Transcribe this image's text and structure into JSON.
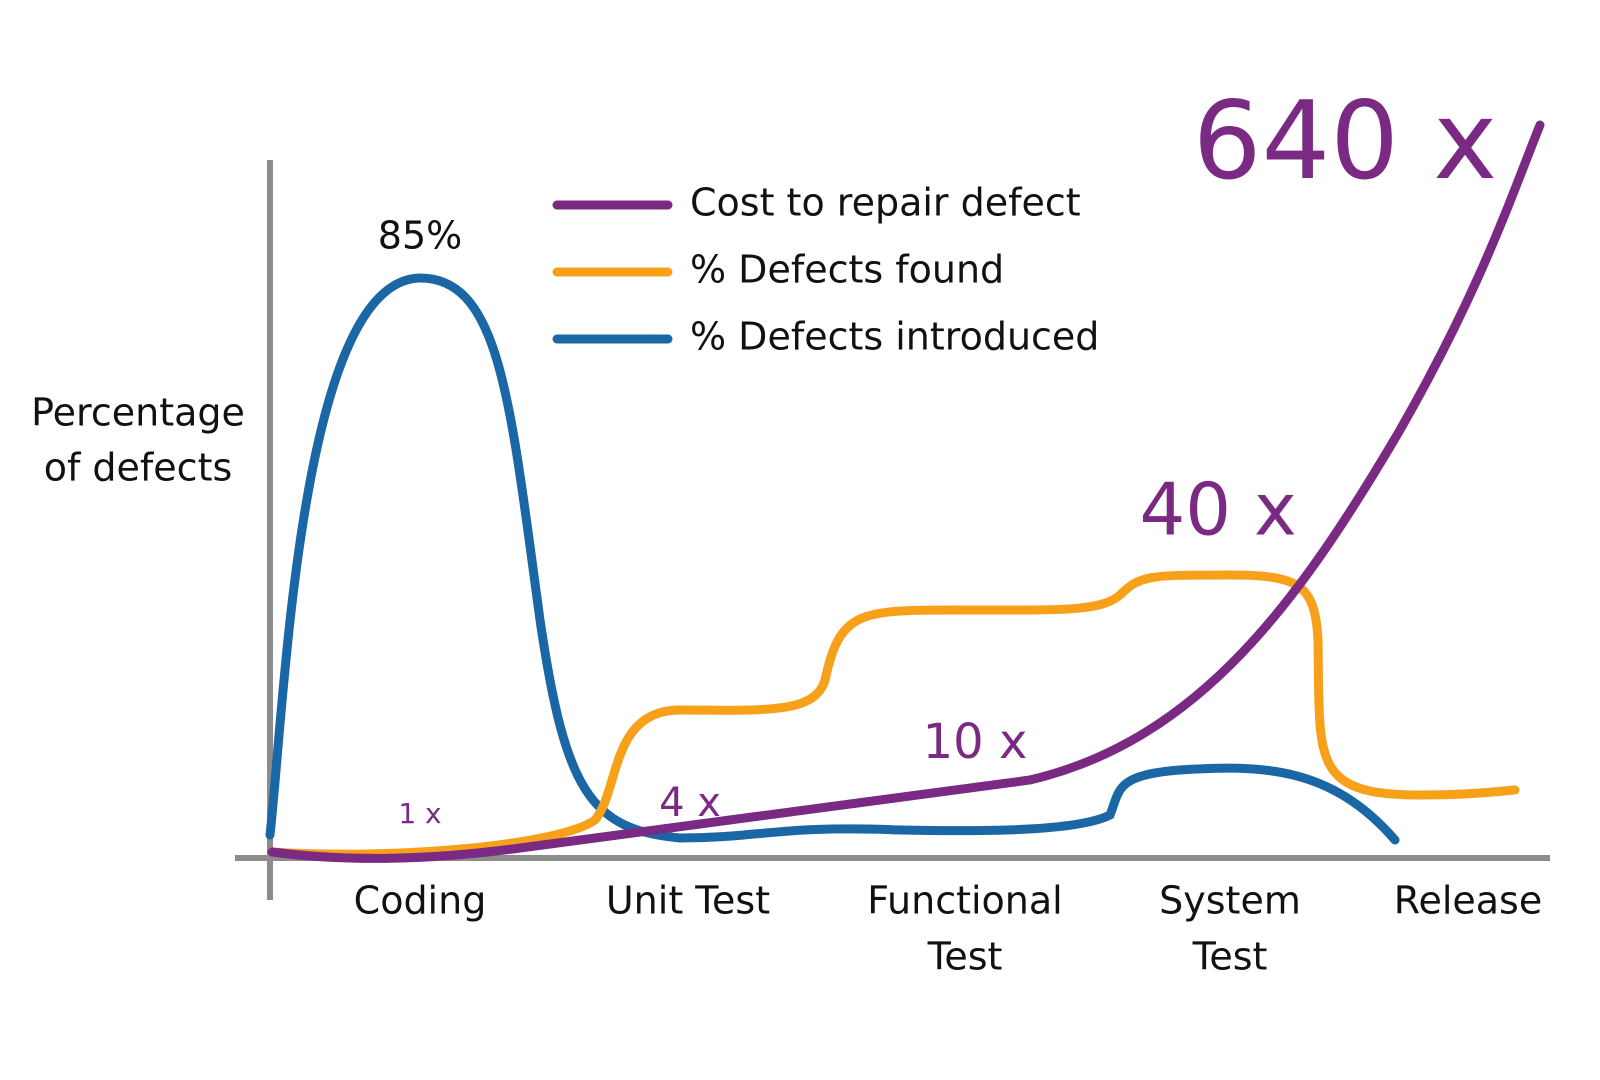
{
  "y_axis_label": [
    "Percentage",
    "of defects"
  ],
  "stages": [
    [
      "Coding"
    ],
    [
      "Unit Test"
    ],
    [
      "Functional",
      "Test"
    ],
    [
      "System",
      "Test"
    ],
    [
      "Release"
    ]
  ],
  "peak_label": "85%",
  "legend": [
    {
      "name": "Cost to repair defect",
      "color": "#7b2a83"
    },
    {
      "name": "% Defects found",
      "color": "#f7a11a"
    },
    {
      "name": "% Defects introduced",
      "color": "#1b67a6"
    }
  ],
  "cost_labels": [
    "1 x",
    "4 x",
    "10 x",
    "40 x",
    "640 x"
  ]
}
